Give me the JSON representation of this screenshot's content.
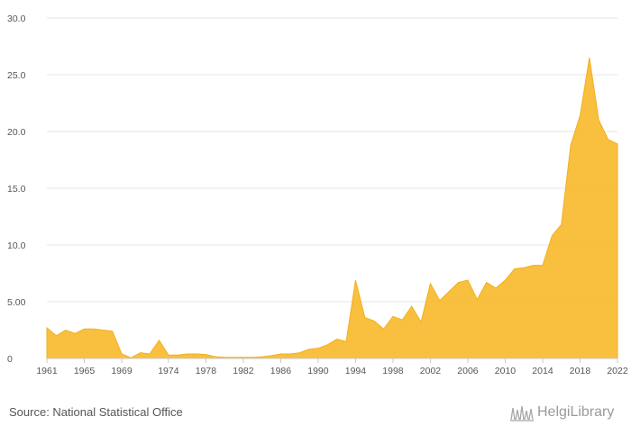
{
  "chart_data": {
    "type": "area",
    "title": "",
    "xlabel": "",
    "ylabel": "",
    "x": [
      1961,
      1962,
      1963,
      1964,
      1965,
      1966,
      1967,
      1968,
      1969,
      1970,
      1971,
      1972,
      1973,
      1974,
      1975,
      1976,
      1977,
      1978,
      1979,
      1980,
      1981,
      1982,
      1983,
      1984,
      1985,
      1986,
      1987,
      1988,
      1989,
      1990,
      1991,
      1992,
      1993,
      1994,
      1995,
      1996,
      1997,
      1998,
      1999,
      2000,
      2001,
      2002,
      2003,
      2004,
      2005,
      2006,
      2007,
      2008,
      2009,
      2010,
      2011,
      2012,
      2013,
      2014,
      2015,
      2016,
      2017,
      2018,
      2019,
      2020,
      2021,
      2022
    ],
    "series": [
      {
        "values": [
          2.7,
          2.0,
          2.5,
          2.2,
          2.6,
          2.6,
          2.5,
          2.4,
          0.4,
          0.05,
          0.5,
          0.4,
          1.6,
          0.3,
          0.3,
          0.4,
          0.4,
          0.35,
          0.15,
          0.1,
          0.1,
          0.1,
          0.1,
          0.15,
          0.25,
          0.4,
          0.4,
          0.5,
          0.8,
          0.9,
          1.2,
          1.7,
          1.5,
          6.9,
          3.6,
          3.3,
          2.6,
          3.7,
          3.4,
          4.6,
          3.2,
          6.6,
          5.1,
          5.9,
          6.7,
          6.9,
          5.2,
          6.7,
          6.2,
          6.9,
          7.9,
          8.0,
          8.2,
          8.2,
          10.8,
          11.8,
          18.8,
          21.4,
          26.5,
          21.0,
          19.3,
          18.9
        ],
        "color": "#f9bc35"
      }
    ],
    "x_tick_labels": [
      "1961",
      "1965",
      "1969",
      "1974",
      "1978",
      "1982",
      "1986",
      "1990",
      "1994",
      "1998",
      "2002",
      "2006",
      "2010",
      "2014",
      "2018",
      "2022"
    ],
    "y_tick_labels": [
      "0",
      "5.00",
      "10.0",
      "15.0",
      "20.0",
      "25.0",
      "30.0"
    ],
    "ylim": [
      0,
      30
    ],
    "grid": true,
    "legend": "none"
  },
  "footer": {
    "source": "Source: National Statistical Office",
    "logo_text": "HelgiLibrary"
  }
}
